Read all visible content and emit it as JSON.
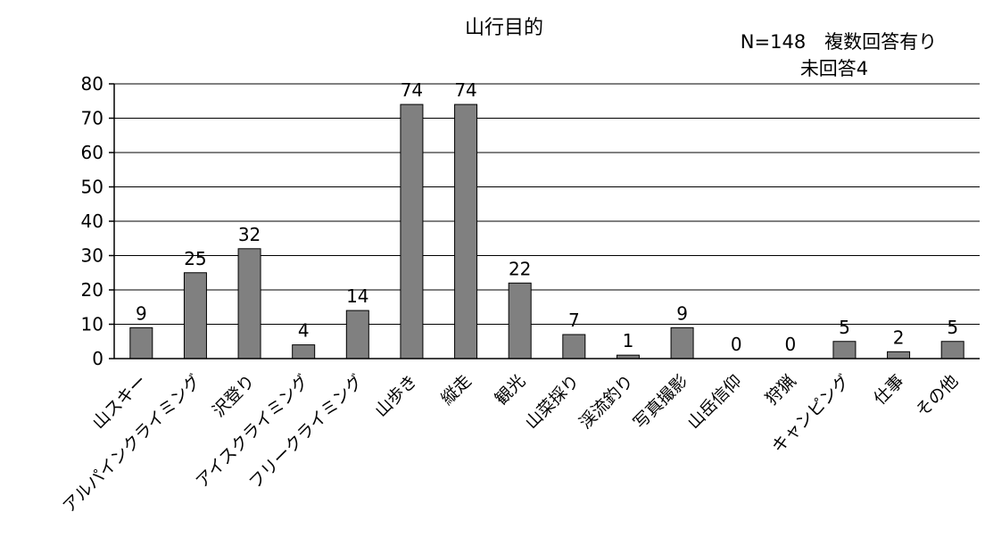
{
  "chart_data": {
    "type": "bar",
    "title": "山行目的",
    "annotations": [
      "N=148　複数回答有り",
      "未回答4"
    ],
    "categories": [
      "山スキー",
      "アルパインクライミング",
      "沢登り",
      "アイスクライミング",
      "フリークライミング",
      "山歩き",
      "縦走",
      "観光",
      "山菜採り",
      "渓流釣り",
      "写真撮影",
      "山岳信仰",
      "狩猟",
      "キャンピング",
      "仕事",
      "その他"
    ],
    "values": [
      9,
      25,
      32,
      4,
      14,
      74,
      74,
      22,
      7,
      1,
      9,
      0,
      0,
      5,
      2,
      5
    ],
    "yticks": [
      "0",
      "10",
      "20",
      "30",
      "40",
      "50",
      "60",
      "70",
      "80"
    ],
    "ylim": [
      0,
      80
    ],
    "grid": true,
    "legend": "none",
    "colors": {
      "bar": "#808080"
    }
  }
}
